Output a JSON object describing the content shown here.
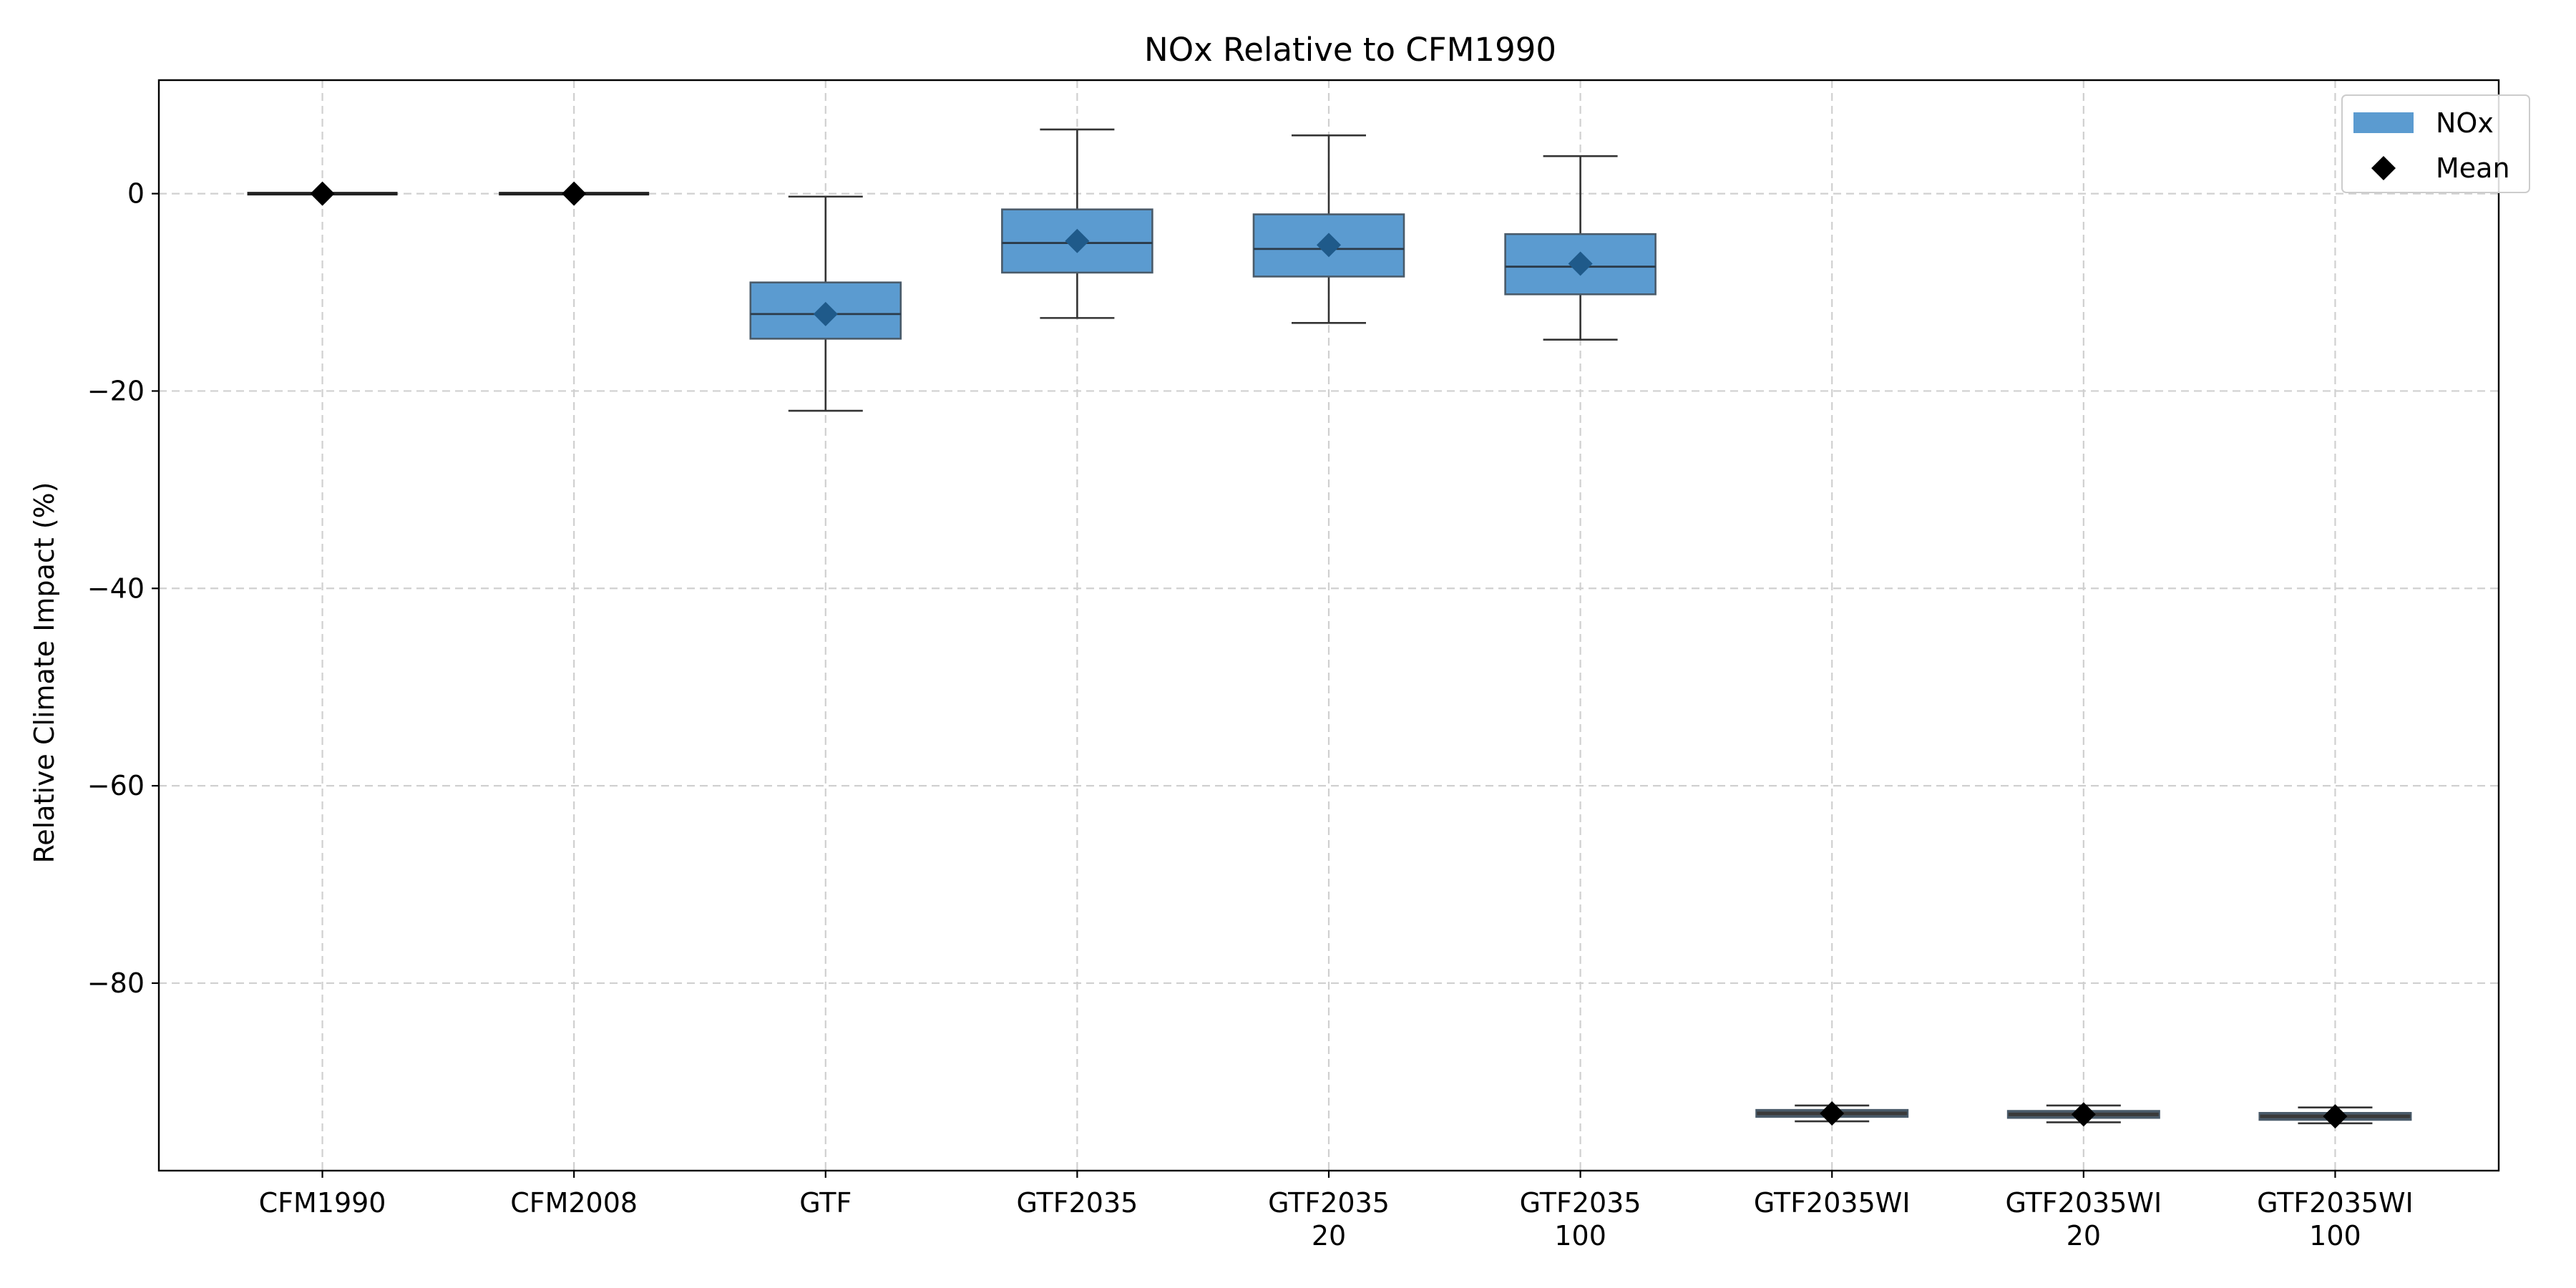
{
  "chart_data": {
    "type": "box",
    "title": "NOx Relative to CFM1990",
    "xlabel": "",
    "ylabel": "Relative Climate Impact (%)",
    "ylim": [
      -99,
      11.5
    ],
    "grid": true,
    "legend_position": "top-right",
    "colors": {
      "box_fill": "#5b9bd0",
      "box_edge": "#4a5b6a",
      "whisker": "#333333",
      "mean_marker": "#000000",
      "mean_marker_on_box": "#1f5a8a",
      "grid": "#d0d0d0"
    },
    "series": [
      {
        "name": "NOx",
        "kind": "box"
      },
      {
        "name": "Mean",
        "kind": "marker"
      }
    ],
    "categories": [
      [
        "CFM1990"
      ],
      [
        "CFM2008"
      ],
      [
        "GTF"
      ],
      [
        "GTF2035"
      ],
      [
        "GTF2035",
        "20"
      ],
      [
        "GTF2035",
        "100"
      ],
      [
        "GTF2035WI"
      ],
      [
        "GTF2035WI",
        "20"
      ],
      [
        "GTF2035WI",
        "100"
      ]
    ],
    "yticks": [
      {
        "value": 0,
        "label": "0"
      },
      {
        "value": -20,
        "label": "−20"
      },
      {
        "value": -40,
        "label": "−40"
      },
      {
        "value": -60,
        "label": "−60"
      },
      {
        "value": -80,
        "label": "−80"
      }
    ],
    "boxes": [
      {
        "whislo": 0,
        "q1": 0,
        "med": 0,
        "q3": 0,
        "whishi": 0,
        "mean": 0
      },
      {
        "whislo": 0,
        "q1": 0,
        "med": 0,
        "q3": 0,
        "whishi": 0,
        "mean": 0
      },
      {
        "whislo": -22,
        "q1": -14.7,
        "med": -12.2,
        "q3": -9,
        "whishi": -0.3,
        "mean": -12.2
      },
      {
        "whislo": -12.6,
        "q1": -8,
        "med": -5,
        "q3": -1.6,
        "whishi": 6.5,
        "mean": -4.8
      },
      {
        "whislo": -13.1,
        "q1": -8.4,
        "med": -5.6,
        "q3": -2.1,
        "whishi": 5.9,
        "mean": -5.2
      },
      {
        "whislo": -14.8,
        "q1": -10.2,
        "med": -7.4,
        "q3": -4.1,
        "whishi": 3.8,
        "mean": -7.1
      },
      {
        "whislo": -94,
        "q1": -93.5,
        "med": -93.2,
        "q3": -92.9,
        "whishi": -92.4,
        "mean": -93.2
      },
      {
        "whislo": -94.1,
        "q1": -93.6,
        "med": -93.3,
        "q3": -93,
        "whishi": -92.4,
        "mean": -93.3
      },
      {
        "whislo": -94.2,
        "q1": -93.8,
        "med": -93.5,
        "q3": -93.2,
        "whishi": -92.6,
        "mean": -93.5
      }
    ]
  }
}
